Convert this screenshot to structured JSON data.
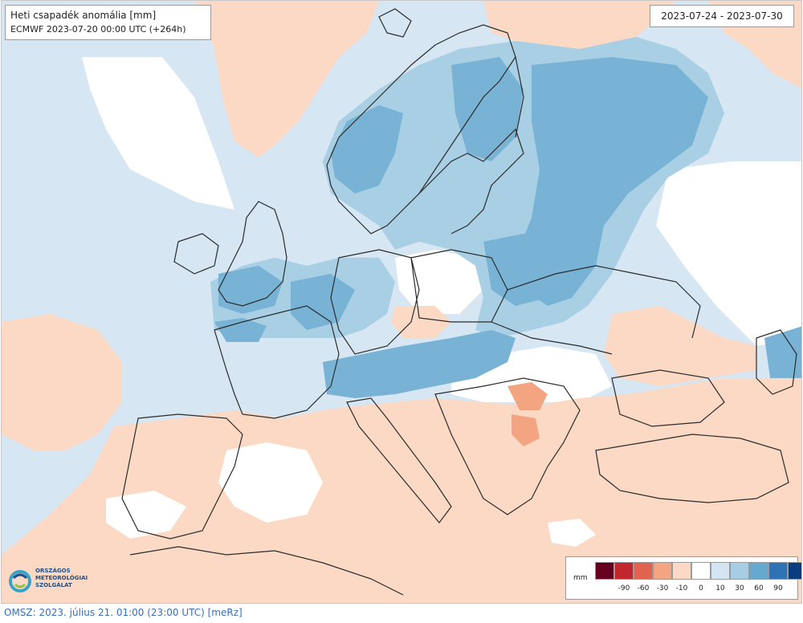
{
  "header": {
    "title": "Heti csapadék anomália [mm]",
    "subtitle": "ECMWF 2023-07-20 00:00 UTC (+264h)",
    "date_range": "2023-07-24 - 2023-07-30"
  },
  "logo": {
    "text": "ORSZÁGOS\nMETEOROLÓGIAI\nSZOLGÁLAT",
    "icon": "omsz-logo-icon"
  },
  "legend": {
    "unit": "mm",
    "colors": [
      "#67001f",
      "#c1272d",
      "#e0624f",
      "#f3a582",
      "#fbd9c4",
      "#ffffff",
      "#d3e5f3",
      "#a6cde3",
      "#66a9cf",
      "#2e73b5",
      "#0b3c7d"
    ],
    "ticks": [
      "-90",
      "-60",
      "-30",
      "-10",
      "0",
      "10",
      "30",
      "60",
      "90"
    ]
  },
  "footer": {
    "text": "OMSZ: 2023. július 21. 01:00 (23:00  UTC)  [meRz]"
  },
  "map": {
    "colors": {
      "ocean_light_blue": "#d6e6f3",
      "medium_blue": "#a9cfe5",
      "strong_blue": "#78b3d6",
      "light_salmon": "#fbd9c4",
      "salmon": "#f3a582",
      "white": "#ffffff",
      "border": "#2b2b2b"
    }
  }
}
